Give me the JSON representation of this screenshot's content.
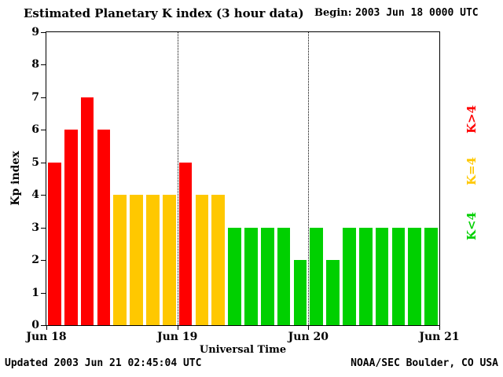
{
  "title": "Estimated Planetary K index (3 hour data)",
  "begin_label": "Begin:",
  "begin_value": "2003 Jun 18 0000 UTC",
  "footer": {
    "updated": "Updated 2003 Jun 21 02:45:04 UTC",
    "credit": "NOAA/SEC Boulder, CO USA"
  },
  "colors": {
    "high": "#ff0000",
    "mid": "#ffc800",
    "low": "#00d000"
  },
  "legend": [
    {
      "label": "K>4",
      "color": "#ff0000"
    },
    {
      "label": "K=4",
      "color": "#ffc800"
    },
    {
      "label": "K<4",
      "color": "#00d000"
    }
  ],
  "chart_data": {
    "type": "bar",
    "title": "Estimated Planetary K index (3 hour data)",
    "xlabel": "Universal Time",
    "ylabel": "Kp index",
    "ylim": [
      0,
      9
    ],
    "yticks": [
      0,
      1,
      2,
      3,
      4,
      5,
      6,
      7,
      8,
      9
    ],
    "xticks": [
      "Jun 18",
      "Jun 19",
      "Jun 20",
      "Jun 21"
    ],
    "bins_per_day": 8,
    "bin_hours": 3,
    "values": [
      5,
      6,
      7,
      6,
      4,
      4,
      4,
      4,
      5,
      4,
      4,
      3,
      3,
      3,
      3,
      2,
      3,
      2,
      3,
      3,
      3,
      3,
      3,
      3
    ],
    "days": [
      {
        "date": "Jun 18",
        "values": [
          5,
          6,
          7,
          6,
          4,
          4,
          4,
          4
        ]
      },
      {
        "date": "Jun 19",
        "values": [
          5,
          4,
          4,
          3,
          3,
          3,
          3,
          2
        ]
      },
      {
        "date": "Jun 20",
        "values": [
          3,
          2,
          3,
          3,
          3,
          3,
          3,
          3
        ]
      }
    ],
    "color_rule": "red if K>4, yellow if K=4, green if K<4",
    "grid": "dotted vertical lines at day boundaries",
    "legend_position": "right"
  }
}
